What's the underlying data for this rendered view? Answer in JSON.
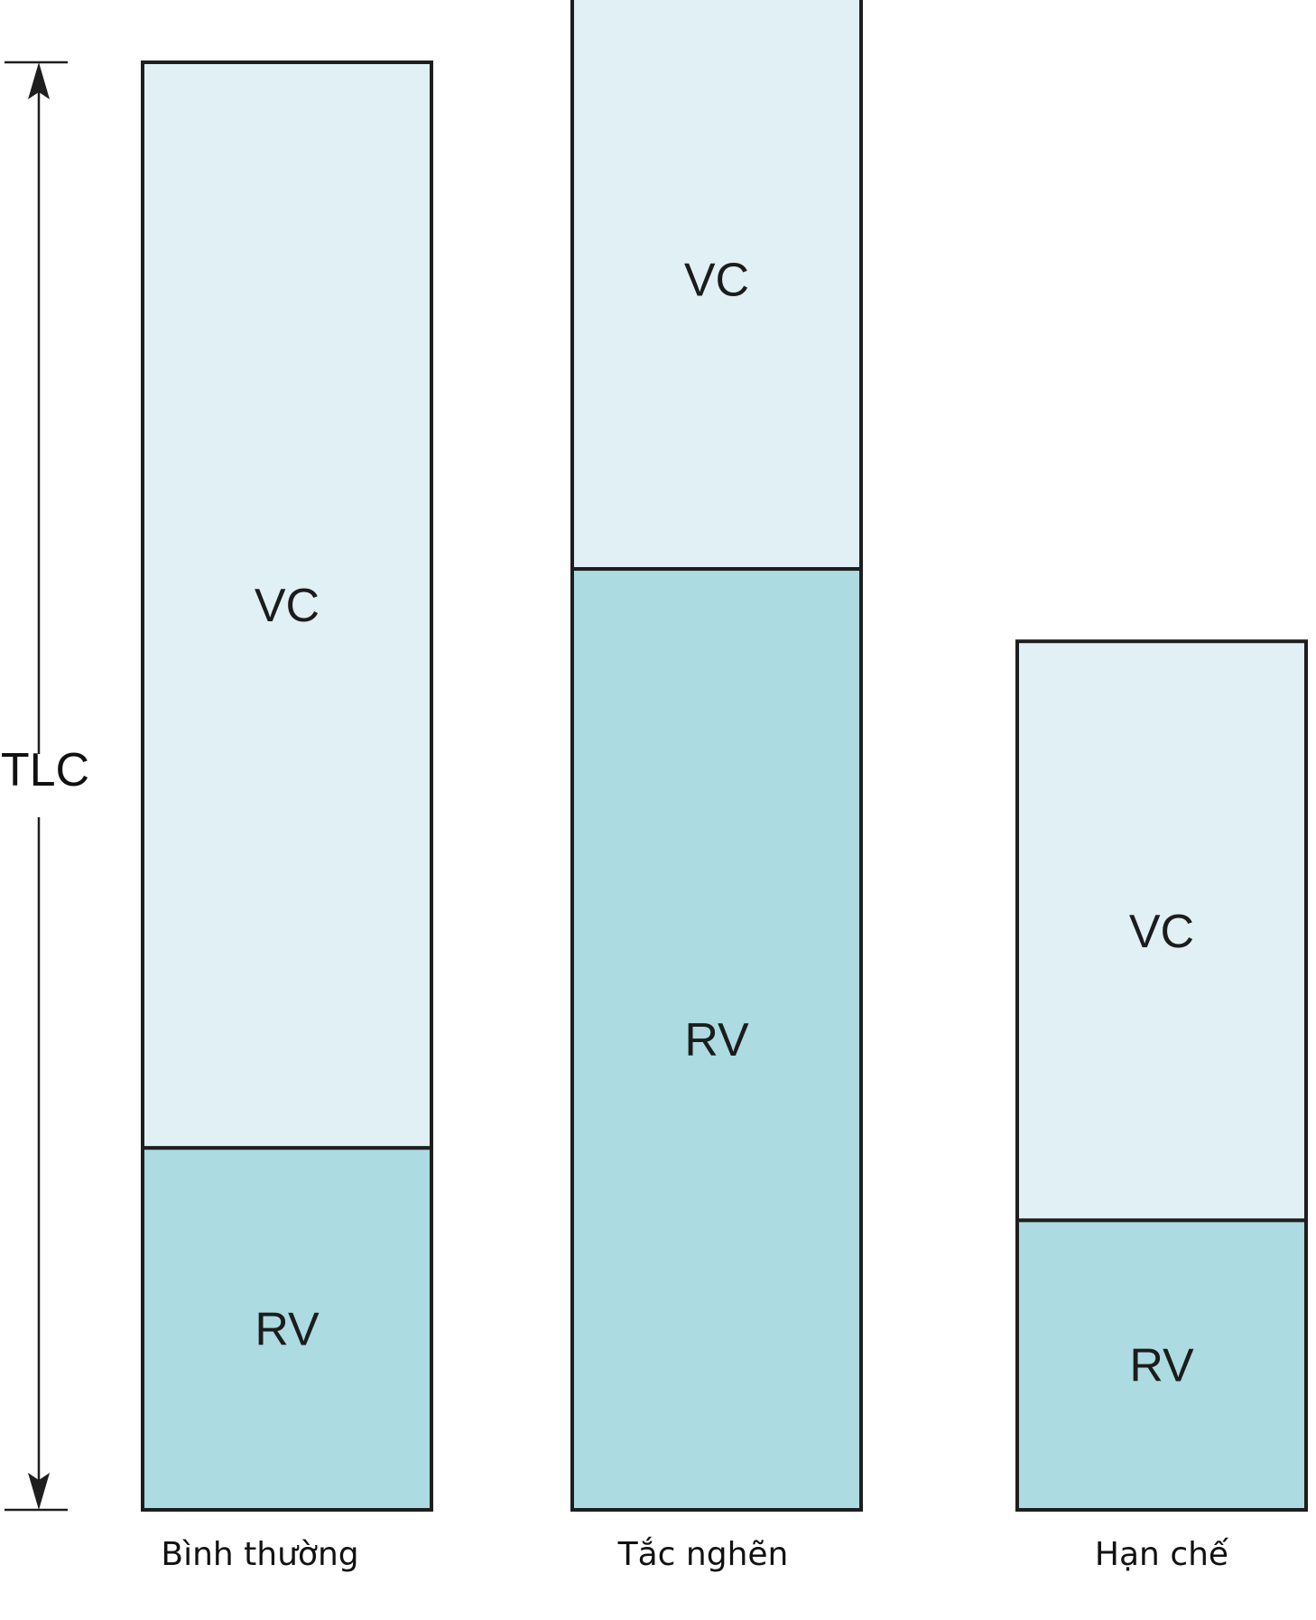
{
  "colors": {
    "vc_fill": "#e1f0f5",
    "rv_fill": "#acdbe1",
    "stroke": "#1e1e1e"
  },
  "dimension": {
    "label": "TLC"
  },
  "bars": [
    {
      "category": "Bình thường",
      "vc_label": "VC",
      "rv_label": "RV",
      "vc": 75,
      "rv": 25
    },
    {
      "category": "Tắc nghẽn",
      "vc_label": "VC",
      "rv_label": "RV",
      "vc": 40,
      "rv": 65
    },
    {
      "category": "Hạn chế",
      "vc_label": "VC",
      "rv_label": "RV",
      "vc": 40,
      "rv": 20
    }
  ]
}
